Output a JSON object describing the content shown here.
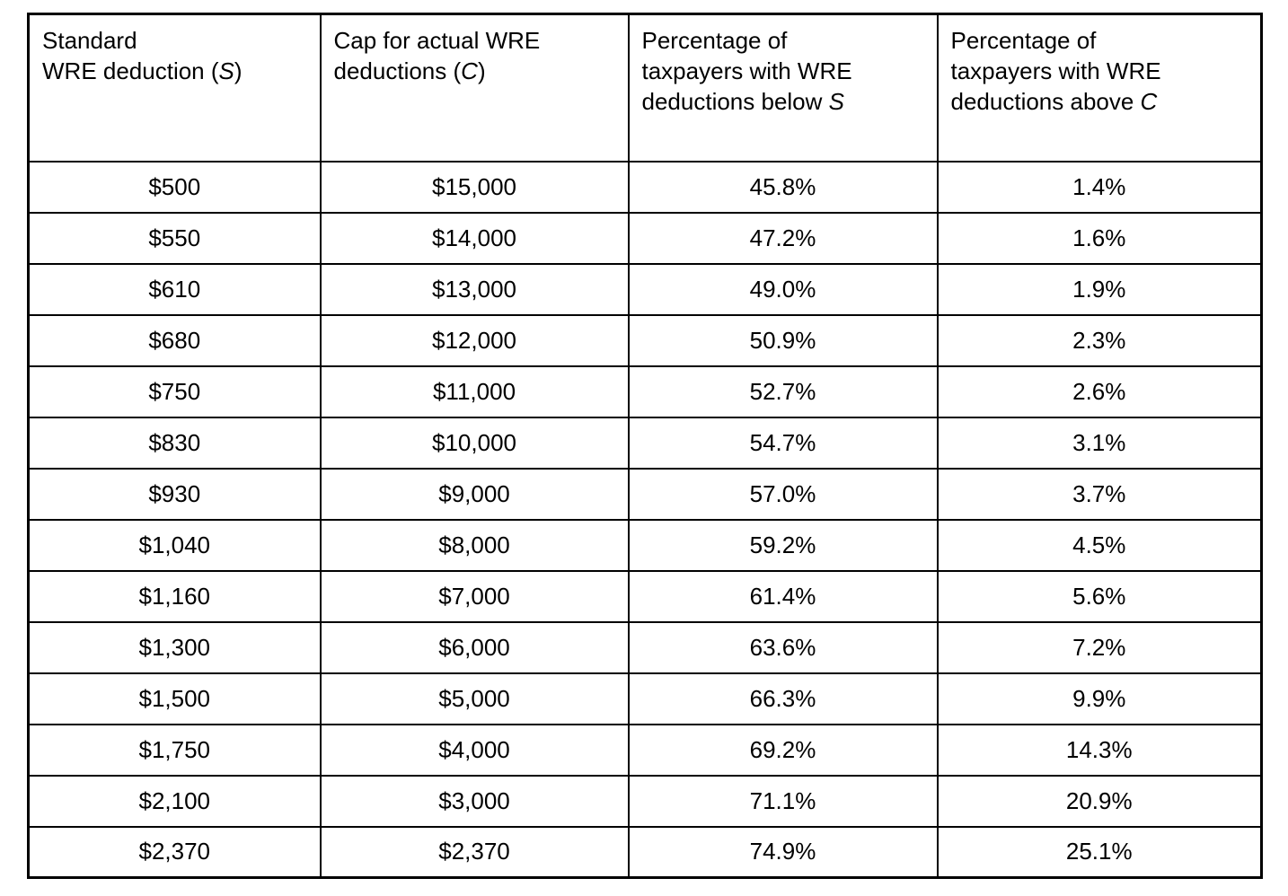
{
  "colors": {
    "background": "#ffffff",
    "border": "#000000",
    "text": "#000000"
  },
  "table": {
    "columns": [
      {
        "id": "standard-wre-deduction",
        "plain_label": "Standard WRE deduction (S)",
        "parts": [
          {
            "t": "Standard"
          },
          {
            "br": true
          },
          {
            "t": "WRE deduction ("
          },
          {
            "t": "S",
            "i": true
          },
          {
            "t": ")"
          }
        ]
      },
      {
        "id": "cap-for-actual-wre-deductions",
        "plain_label": "Cap for actual WRE deductions (C)",
        "parts": [
          {
            "t": "Cap for actual WRE"
          },
          {
            "br": true
          },
          {
            "t": "deductions ("
          },
          {
            "t": "C",
            "i": true
          },
          {
            "t": ")"
          }
        ]
      },
      {
        "id": "pct-taxpayers-below-s",
        "plain_label": "Percentage of taxpayers with WRE deductions below S",
        "parts": [
          {
            "t": "Percentage of"
          },
          {
            "br": true
          },
          {
            "t": "taxpayers with WRE"
          },
          {
            "br": true
          },
          {
            "t": "deductions below "
          },
          {
            "t": "S",
            "i": true
          }
        ]
      },
      {
        "id": "pct-taxpayers-above-c",
        "plain_label": "Percentage of taxpayers with WRE deductions above C",
        "parts": [
          {
            "t": "Percentage of"
          },
          {
            "br": true
          },
          {
            "t": "taxpayers with WRE"
          },
          {
            "br": true
          },
          {
            "t": "deductions above "
          },
          {
            "t": "C",
            "i": true
          }
        ]
      }
    ],
    "rows": [
      [
        "$500",
        "$15,000",
        "45.8%",
        "1.4%"
      ],
      [
        "$550",
        "$14,000",
        "47.2%",
        "1.6%"
      ],
      [
        "$610",
        "$13,000",
        "49.0%",
        "1.9%"
      ],
      [
        "$680",
        "$12,000",
        "50.9%",
        "2.3%"
      ],
      [
        "$750",
        "$11,000",
        "52.7%",
        "2.6%"
      ],
      [
        "$830",
        "$10,000",
        "54.7%",
        "3.1%"
      ],
      [
        "$930",
        "$9,000",
        "57.0%",
        "3.7%"
      ],
      [
        "$1,040",
        "$8,000",
        "59.2%",
        "4.5%"
      ],
      [
        "$1,160",
        "$7,000",
        "61.4%",
        "5.6%"
      ],
      [
        "$1,300",
        "$6,000",
        "63.6%",
        "7.2%"
      ],
      [
        "$1,500",
        "$5,000",
        "66.3%",
        "9.9%"
      ],
      [
        "$1,750",
        "$4,000",
        "69.2%",
        "14.3%"
      ],
      [
        "$2,100",
        "$3,000",
        "71.1%",
        "20.9%"
      ],
      [
        "$2,370",
        "$2,370",
        "74.9%",
        "25.1%"
      ]
    ]
  }
}
